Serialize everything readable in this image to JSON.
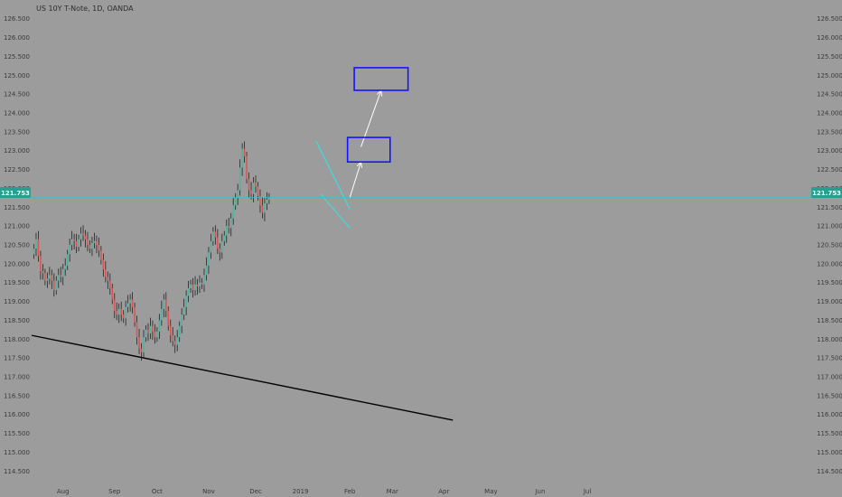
{
  "title": "US 10Y T-Note, 1D, OANDA",
  "current_price_label": "121.753",
  "colors": {
    "background": "#9c9c9c",
    "up": "#4fb3a0",
    "down": "#e05454",
    "wick": "#222222",
    "price_line": "#26c6da",
    "wedge": "#2ee6e6",
    "target_box": "#1414ff",
    "arrow": "#ffffff",
    "trendline": "#000000"
  },
  "chart_data": {
    "type": "candlestick",
    "symbol": "US 10Y T-Note",
    "timeframe": "1D",
    "source": "OANDA",
    "title": "US 10Y T-Note, 1D, OANDA",
    "ylim": [
      114.1,
      126.9
    ],
    "y_ticks": [
      "126.500",
      "126.000",
      "125.500",
      "125.000",
      "124.500",
      "124.000",
      "123.500",
      "123.000",
      "122.500",
      "122.000",
      "121.500",
      "121.000",
      "120.500",
      "120.000",
      "119.500",
      "119.000",
      "118.500",
      "118.000",
      "117.500",
      "117.000",
      "116.500",
      "116.000",
      "115.500",
      "115.000",
      "114.500"
    ],
    "x_ticks": [
      {
        "label": "Aug",
        "index": 14
      },
      {
        "label": "Sep",
        "index": 37
      },
      {
        "label": "Oct",
        "index": 56
      },
      {
        "label": "Nov",
        "index": 79
      },
      {
        "label": "Dec",
        "index": 100
      },
      {
        "label": "2019",
        "index": 120
      },
      {
        "label": "Feb",
        "index": 142
      },
      {
        "label": "Mar",
        "index": 161
      },
      {
        "label": "Apr",
        "index": 184
      },
      {
        "label": "May",
        "index": 205
      },
      {
        "label": "Jun",
        "index": 227
      },
      {
        "label": "Jul",
        "index": 248
      }
    ],
    "x_domain": [
      0,
      252
    ],
    "closes": [
      120.4,
      120.65,
      120.2,
      119.8,
      119.75,
      119.55,
      119.6,
      119.7,
      119.55,
      119.3,
      119.55,
      119.7,
      119.65,
      119.85,
      119.95,
      120.25,
      120.5,
      120.65,
      120.6,
      120.45,
      120.65,
      120.8,
      120.75,
      120.65,
      120.5,
      120.4,
      120.55,
      120.6,
      120.5,
      120.35,
      120.1,
      119.85,
      119.65,
      119.55,
      119.35,
      119.05,
      118.75,
      118.65,
      118.8,
      118.65,
      118.55,
      118.85,
      118.95,
      119.05,
      118.85,
      118.45,
      118.05,
      117.75,
      117.65,
      118.05,
      118.25,
      118.15,
      118.35,
      118.2,
      118.05,
      118.2,
      118.5,
      118.8,
      119.05,
      118.75,
      118.35,
      118.1,
      117.95,
      117.85,
      118.05,
      118.35,
      118.65,
      118.85,
      119.15,
      119.35,
      119.45,
      119.3,
      119.45,
      119.4,
      119.5,
      119.45,
      119.7,
      119.95,
      120.3,
      120.6,
      120.85,
      120.7,
      120.4,
      120.3,
      120.6,
      120.75,
      121.0,
      120.95,
      121.2,
      121.55,
      121.75,
      121.95,
      122.55,
      123.05,
      122.85,
      122.25,
      121.95,
      121.85,
      122.15,
      122.05,
      121.8,
      121.55,
      121.35,
      121.6,
      121.7,
      121.75
    ],
    "series_index_map": "closes[0] corresponds to x index 1; consecutive trading days",
    "horizontal_line": {
      "price": 121.753
    },
    "annotations": [
      {
        "type": "trendline",
        "from": {
          "x": 0,
          "y": 118.1
        },
        "to": {
          "x": 188,
          "y": 115.85
        }
      },
      {
        "type": "falling_wedge_upper",
        "from": {
          "x": 127,
          "y": 123.25
        },
        "to": {
          "x": 142,
          "y": 121.45
        }
      },
      {
        "type": "falling_wedge_lower",
        "from": {
          "x": 129,
          "y": 121.85
        },
        "to": {
          "x": 142,
          "y": 120.95
        }
      },
      {
        "type": "arrow",
        "from": {
          "x": 142,
          "y": 121.75
        },
        "to": {
          "x": 147,
          "y": 122.7
        }
      },
      {
        "type": "arrow",
        "from": {
          "x": 147,
          "y": 123.1
        },
        "to": {
          "x": 156,
          "y": 124.6
        }
      },
      {
        "type": "target_box",
        "x0": 141,
        "x1": 160,
        "y0": 122.7,
        "y1": 123.35
      },
      {
        "type": "target_box",
        "x0": 144,
        "x1": 168,
        "y0": 124.6,
        "y1": 125.2
      }
    ]
  }
}
